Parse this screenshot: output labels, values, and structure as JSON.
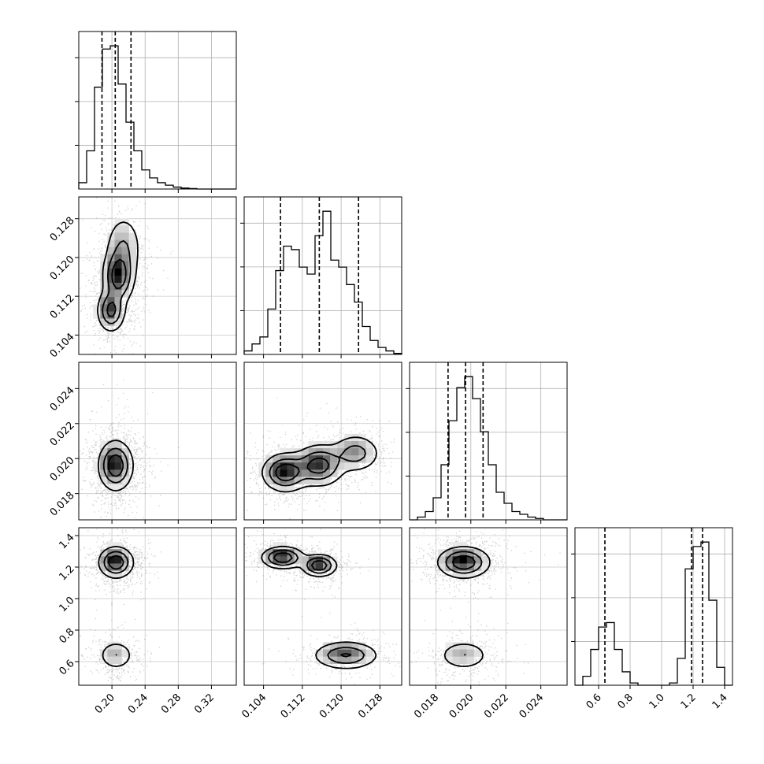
{
  "chart_data": {
    "type": "corner",
    "title": "",
    "parameters": [
      {
        "name": "",
        "range": [
          0.16,
          0.35
        ],
        "ticks": [
          "0.20",
          "0.24",
          "0.28",
          "0.32"
        ]
      },
      {
        "name": "",
        "range": [
          0.1,
          0.1325
        ],
        "ticks": [
          "0.104",
          "0.112",
          "0.120",
          "0.128"
        ]
      },
      {
        "name": "",
        "range": [
          0.0165,
          0.0255
        ],
        "ticks": [
          "0.018",
          "0.020",
          "0.022",
          "0.024"
        ]
      },
      {
        "name": "",
        "range": [
          0.45,
          1.45
        ],
        "ticks": [
          "0.6",
          "0.8",
          "1.0",
          "1.2",
          "1.4"
        ]
      }
    ],
    "histograms": [
      {
        "param": 0,
        "bin_start": 0.16,
        "bin_width": 0.0095,
        "counts": [
          2,
          12,
          32,
          44,
          45,
          33,
          21,
          12,
          6,
          3.5,
          2,
          1.2,
          0.6,
          0.3,
          0.15,
          0,
          0,
          0,
          0,
          0
        ],
        "quantiles": [
          0.188,
          0.204,
          0.223
        ]
      },
      {
        "param": 1,
        "bin_start": 0.1,
        "bin_width": 0.001625,
        "counts": [
          1,
          3,
          5,
          13,
          24,
          31,
          30,
          25,
          23,
          34,
          41,
          27,
          25,
          20,
          15,
          8,
          4,
          2,
          1,
          0.3
        ],
        "quantiles": [
          0.1075,
          0.1155,
          0.1236
        ]
      },
      {
        "param": 2,
        "bin_start": 0.0165,
        "bin_width": 0.00045,
        "counts": [
          0,
          1,
          3,
          8,
          20,
          36,
          48,
          52,
          44,
          32,
          20,
          10,
          6,
          3,
          2,
          1,
          0.5,
          0,
          0,
          0
        ],
        "quantiles": [
          0.0187,
          0.0197,
          0.0207
        ]
      },
      {
        "param": 3,
        "bin_start": 0.45,
        "bin_width": 0.05,
        "counts": [
          0,
          2,
          8,
          13,
          14,
          8,
          3,
          0.5,
          0,
          0,
          0,
          0,
          0.5,
          6,
          26,
          31,
          32,
          19,
          4,
          0
        ],
        "quantiles": [
          0.64,
          1.19,
          1.26
        ]
      }
    ],
    "joint_modes": [
      {
        "x": 0,
        "y": 1,
        "modes": [
          {
            "cx": 0.199,
            "cy": 0.109,
            "sx": 0.0085,
            "sy": 0.0022,
            "w": 0.9
          },
          {
            "cx": 0.208,
            "cy": 0.116,
            "sx": 0.0095,
            "sy": 0.0028,
            "w": 1.0
          },
          {
            "cx": 0.214,
            "cy": 0.122,
            "sx": 0.0115,
            "sy": 0.0036,
            "w": 0.45
          }
        ]
      },
      {
        "x": 0,
        "y": 2,
        "modes": [
          {
            "cx": 0.2045,
            "cy": 0.0196,
            "sx": 0.0105,
            "sy": 0.00072,
            "w": 1.0
          }
        ]
      },
      {
        "x": 1,
        "y": 2,
        "modes": [
          {
            "cx": 0.1085,
            "cy": 0.0192,
            "sx": 0.0024,
            "sy": 0.00055,
            "w": 1.0
          },
          {
            "cx": 0.1155,
            "cy": 0.0196,
            "sx": 0.0026,
            "sy": 0.0006,
            "w": 0.9
          },
          {
            "cx": 0.123,
            "cy": 0.0203,
            "sx": 0.0026,
            "sy": 0.00055,
            "w": 0.55
          }
        ]
      },
      {
        "x": 0,
        "y": 3,
        "modes": [
          {
            "cx": 0.205,
            "cy": 1.23,
            "sx": 0.0105,
            "sy": 0.05,
            "w": 1.0
          },
          {
            "cx": 0.205,
            "cy": 0.64,
            "sx": 0.011,
            "sy": 0.048,
            "w": 0.4
          }
        ]
      },
      {
        "x": 1,
        "y": 3,
        "modes": [
          {
            "cx": 0.108,
            "cy": 1.26,
            "sx": 0.0022,
            "sy": 0.035,
            "w": 0.55
          },
          {
            "cx": 0.1155,
            "cy": 1.21,
            "sx": 0.0018,
            "sy": 0.035,
            "w": 0.55
          },
          {
            "cx": 0.121,
            "cy": 0.64,
            "sx": 0.0034,
            "sy": 0.045,
            "w": 0.4
          }
        ]
      },
      {
        "x": 2,
        "y": 3,
        "modes": [
          {
            "cx": 0.0196,
            "cy": 1.23,
            "sx": 0.00075,
            "sy": 0.05,
            "w": 1.0
          },
          {
            "cx": 0.0196,
            "cy": 0.64,
            "sx": 0.00075,
            "sy": 0.048,
            "w": 0.4
          }
        ]
      }
    ],
    "grid": true,
    "legend": "none"
  }
}
